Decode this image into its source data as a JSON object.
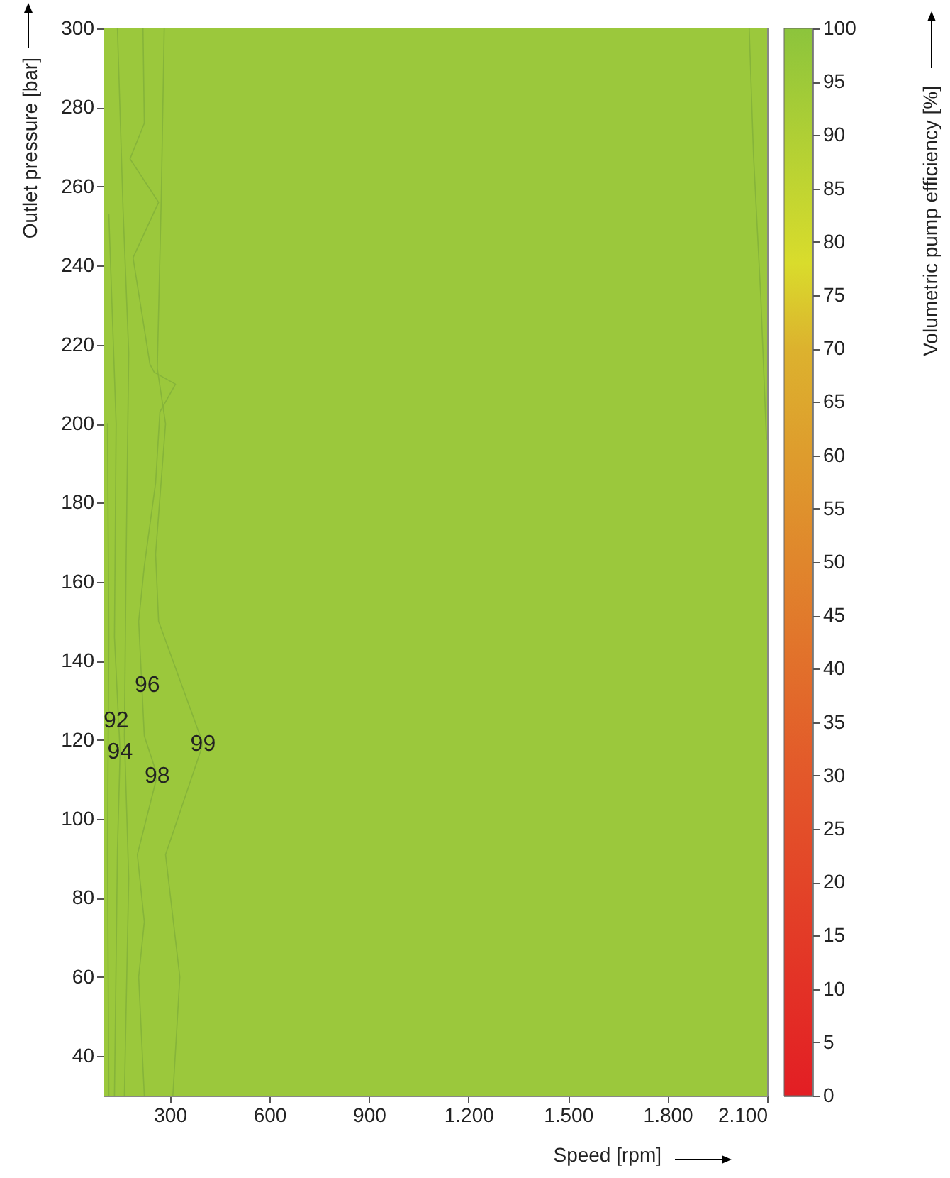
{
  "chart_data": {
    "type": "line",
    "xlabel": "Speed [rpm]",
    "ylabel": "Outlet pressure [bar]",
    "clabel": "Volumetric pump efficiency [%]",
    "xlim": [
      100,
      2100
    ],
    "ylim": [
      30,
      300
    ],
    "xticks": [
      300,
      600,
      900,
      {
        "value": 1200,
        "label": "1.200"
      },
      {
        "value": 1500,
        "label": "1.500"
      },
      {
        "value": 1800,
        "label": "1.800"
      },
      {
        "value": 2100,
        "label": "2.100"
      }
    ],
    "yticks": [
      40,
      60,
      80,
      100,
      120,
      140,
      160,
      180,
      200,
      220,
      240,
      260,
      280,
      300
    ],
    "clim": [
      0,
      100
    ],
    "cticks": [
      0,
      5,
      10,
      15,
      20,
      25,
      30,
      35,
      40,
      45,
      50,
      55,
      60,
      65,
      70,
      75,
      80,
      85,
      90,
      95,
      100
    ],
    "bands": [
      {
        "axis": "y",
        "from": 30,
        "to": 300,
        "color": "#9bc83c"
      }
    ],
    "series": [
      {
        "color": "#86b43a",
        "x": [
          283,
          274,
          262,
          287,
          257,
          266,
          400,
          287,
          330,
          309
        ],
        "values": [
          300,
          257,
          214,
          200,
          167,
          150,
          119,
          91,
          60,
          30
        ]
      },
      {
        "color": "#86b43a",
        "x": [
          219,
          223,
          180,
          266,
          189,
          240,
          253,
          317,
          270,
          257,
          223,
          206,
          223,
          262,
          202,
          223,
          206,
          223
        ],
        "values": [
          300,
          276,
          267,
          256,
          242,
          215,
          213,
          210,
          203,
          185,
          164,
          150,
          121,
          111,
          91,
          74,
          60,
          30
        ]
      },
      {
        "color": "#86b43a",
        "x": [
          142,
          159,
          176,
          168,
          163,
          176,
          163
        ],
        "values": [
          300,
          254,
          218,
          164,
          121,
          85,
          30
        ]
      },
      {
        "color": "#86b43a",
        "x": [
          116,
          138,
          133,
          150,
          142,
          133
        ],
        "values": [
          253,
          200,
          146,
          117,
          92,
          30
        ]
      },
      {
        "color": "#86b43a",
        "x": [
          112,
          116,
          112,
          116
        ],
        "values": [
          200,
          146,
          92,
          30
        ]
      },
      {
        "color": "#86b43a",
        "x": [
          2046,
          2059,
          2081,
          2098
        ],
        "values": [
          300,
          268,
          232,
          196
        ]
      }
    ],
    "annotations": [
      {
        "text": "92",
        "x": 138,
        "y": 125
      },
      {
        "text": "94",
        "x": 150,
        "y": 117
      },
      {
        "text": "96",
        "x": 232,
        "y": 134
      },
      {
        "text": "98",
        "x": 262,
        "y": 111
      },
      {
        "text": "99",
        "x": 400,
        "y": 119
      }
    ]
  }
}
